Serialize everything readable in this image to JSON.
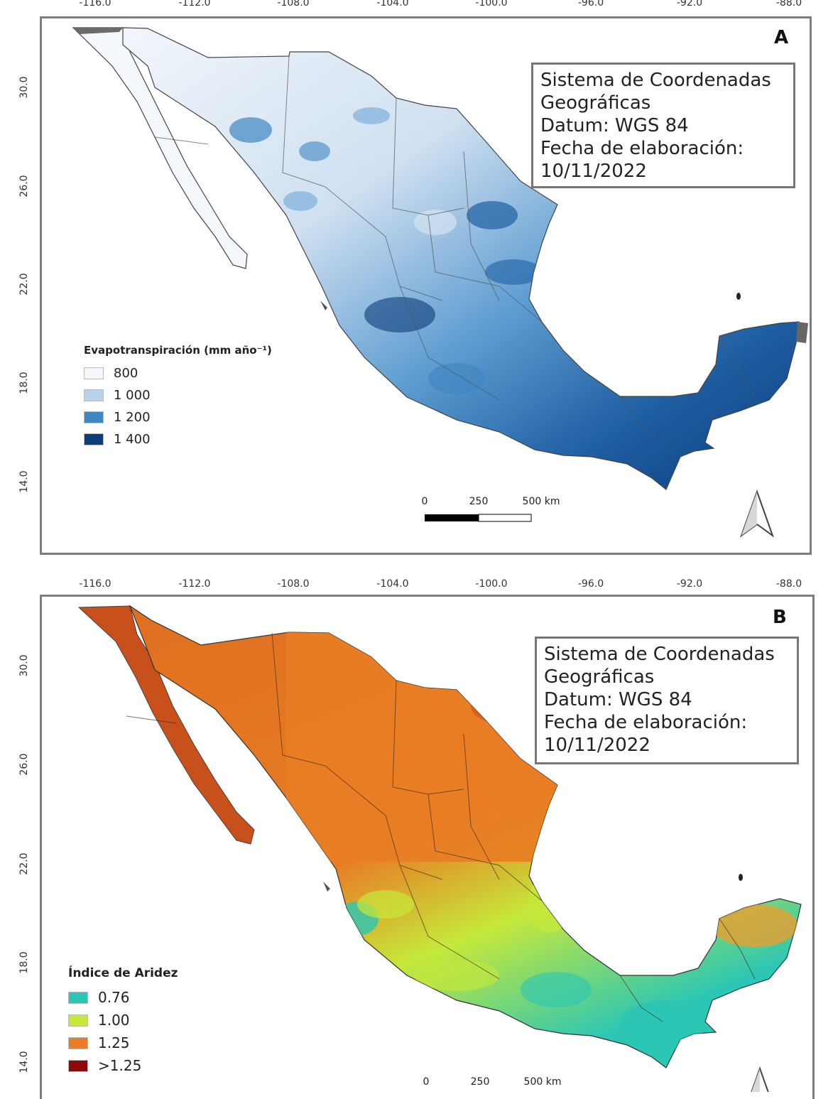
{
  "figure": {
    "longitude_ticks": [
      "-116.0",
      "-112.0",
      "-108.0",
      "-104.0",
      "-100.0",
      "-96.0",
      "-92.0",
      "-88.0"
    ],
    "latitude_ticks": [
      "30.0",
      "26.0",
      "22.0",
      "18.0",
      "14.0"
    ]
  },
  "panel_a": {
    "letter": "A",
    "info": {
      "line1": "Sistema de Coordenadas",
      "line2": "Geográficas",
      "line3": "Datum: WGS 84",
      "line4": "Fecha de elaboración:",
      "line5": "10/11/2022"
    },
    "legend": {
      "title": "Evapotranspiración (mm año⁻¹)",
      "items": [
        {
          "label": "800",
          "color": "#f3f6fb"
        },
        {
          "label": "1 000",
          "color": "#b7d2ea"
        },
        {
          "label": "1 200",
          "color": "#3f86c2"
        },
        {
          "label": "1 400",
          "color": "#0c3c7a"
        }
      ]
    },
    "scale": {
      "labels": [
        "0",
        "250",
        "500 km"
      ]
    }
  },
  "panel_b": {
    "letter": "B",
    "info": {
      "line1": "Sistema de Coordenadas",
      "line2": "Geográficas",
      "line3": "Datum: WGS 84",
      "line4": "Fecha de elaboración:",
      "line5": "10/11/2022"
    },
    "legend": {
      "title": "Índice de Aridez",
      "items": [
        {
          "label": "0.76",
          "color": "#2cc6b4"
        },
        {
          "label": "1.00",
          "color": "#c6e83a"
        },
        {
          "label": "1.25",
          "color": "#e87d25"
        },
        {
          "label": ">1.25",
          "color": "#8c0a0a"
        }
      ]
    },
    "scale": {
      "labels": [
        "0",
        "250",
        "500 km"
      ]
    }
  }
}
